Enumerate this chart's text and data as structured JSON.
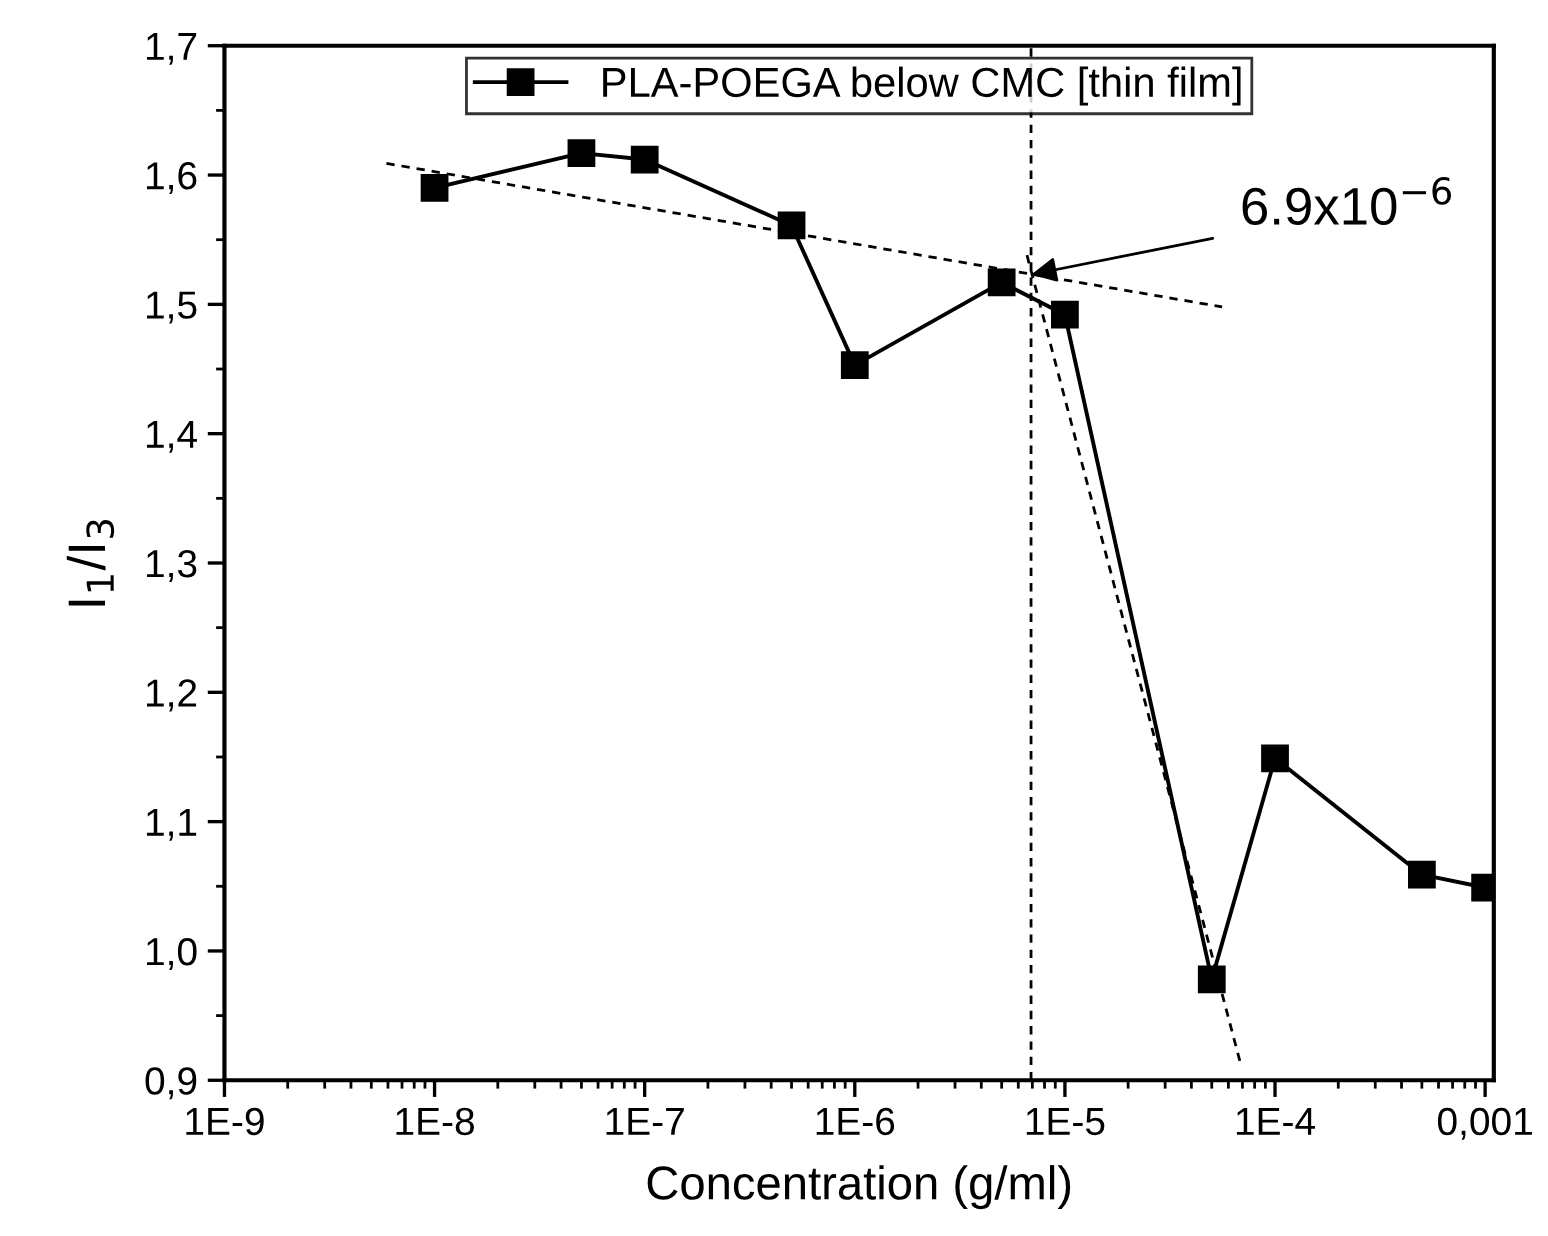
{
  "chart_data": {
    "type": "line",
    "xlabel": "Concentration (g/ml)",
    "ylabel": "I$_{1}$/I$_{3}$",
    "log": "x",
    "xlim": [
      1e-09,
      0.0011
    ],
    "ylim": [
      0.9,
      1.7
    ],
    "xticks": [
      {
        "value": 1e-09,
        "label": "1E-9"
      },
      {
        "value": 1e-08,
        "label": "1E-8"
      },
      {
        "value": 1e-07,
        "label": "1E-7"
      },
      {
        "value": 1e-06,
        "label": "1E-6"
      },
      {
        "value": 1e-05,
        "label": "1E-5"
      },
      {
        "value": 0.0001,
        "label": "1E-4"
      },
      {
        "value": 0.001,
        "label": "0,001"
      }
    ],
    "yticks": [
      {
        "value": 0.9,
        "label": "0,9"
      },
      {
        "value": 1.0,
        "label": "1,0"
      },
      {
        "value": 1.1,
        "label": "1,1"
      },
      {
        "value": 1.2,
        "label": "1,2"
      },
      {
        "value": 1.3,
        "label": "1,3"
      },
      {
        "value": 1.4,
        "label": "1,4"
      },
      {
        "value": 1.5,
        "label": "1,5"
      },
      {
        "value": 1.6,
        "label": "1,6"
      },
      {
        "value": 1.7,
        "label": "1,7"
      }
    ],
    "grid": false,
    "legend": "top",
    "series": [
      {
        "name": "PLA-POEGA below CMC [thin film]",
        "color": "#000000",
        "marker": "square",
        "line_style": "solid",
        "x": [
          1e-08,
          5e-08,
          1e-07,
          5e-07,
          1e-06,
          5e-06,
          1e-05,
          5e-05,
          0.0001,
          0.0005,
          0.001
        ],
        "values": [
          1.59,
          1.617,
          1.612,
          1.561,
          1.453,
          1.517,
          1.492,
          0.978,
          1.149,
          1.059,
          1.049
        ]
      },
      {
        "color": "#000000",
        "marker": "none",
        "line_style": "dashed",
        "x": [
          5.9e-09,
          5.6e-05
        ],
        "values": [
          1.609,
          1.498
        ]
      },
      {
        "color": "#000000",
        "marker": "none",
        "line_style": "dashed",
        "x": [
          6.6e-06,
          6.8e-05
        ],
        "values": [
          1.538,
          0.915
        ]
      }
    ],
    "ref_lines": [
      {
        "axis": "x",
        "value": 6.9e-06,
        "color": "#000000",
        "line_style": "dashed"
      }
    ],
    "annotations": [
      {
        "text": "6.9x10$^{−6}$",
        "x": 6.9e-06,
        "y": 1.523
      }
    ]
  }
}
